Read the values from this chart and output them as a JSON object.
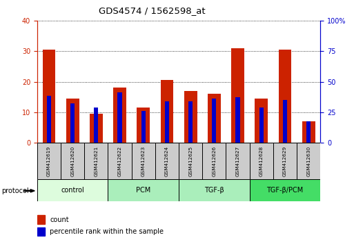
{
  "title": "GDS4574 / 1562598_at",
  "samples": [
    "GSM412619",
    "GSM412620",
    "GSM412621",
    "GSM412622",
    "GSM412623",
    "GSM412624",
    "GSM412625",
    "GSM412626",
    "GSM412627",
    "GSM412628",
    "GSM412629",
    "GSM412630"
  ],
  "count_values": [
    30.5,
    14.5,
    9.5,
    18.0,
    11.5,
    20.5,
    17.0,
    16.0,
    31.0,
    14.5,
    30.5,
    7.0
  ],
  "percentile_values": [
    15.5,
    13.0,
    11.5,
    16.5,
    10.5,
    13.5,
    13.5,
    14.5,
    15.0,
    11.5,
    14.0,
    7.0
  ],
  "ylim_left": [
    0,
    40
  ],
  "ylim_right": [
    0,
    100
  ],
  "yticks_left": [
    0,
    10,
    20,
    30,
    40
  ],
  "yticks_right": [
    0,
    25,
    50,
    75,
    100
  ],
  "groups": [
    {
      "label": "control",
      "start": 0,
      "end": 3,
      "color": "#ddfcdd"
    },
    {
      "label": "PCM",
      "start": 3,
      "end": 6,
      "color": "#aaeebb"
    },
    {
      "label": "TGF-β",
      "start": 6,
      "end": 9,
      "color": "#aaeebb"
    },
    {
      "label": "TGF-β/PCM",
      "start": 9,
      "end": 12,
      "color": "#44dd66"
    }
  ],
  "red_bar_width": 0.55,
  "blue_bar_width": 0.18,
  "count_color": "#cc2200",
  "percentile_color": "#0000cc",
  "left_axis_color": "#cc2200",
  "right_axis_color": "#0000cc",
  "sample_box_color": "#cccccc",
  "protocol_label": "protocol"
}
